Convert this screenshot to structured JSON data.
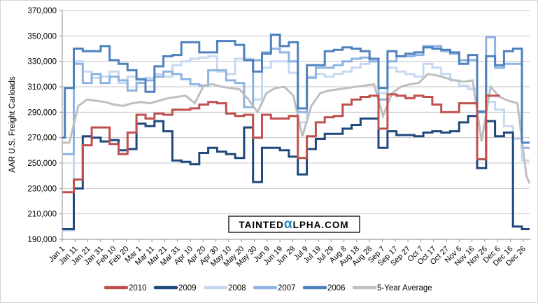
{
  "watermark": {
    "prefix": "TAINTED",
    "alpha": "α",
    "suffix": "LPHA.COM",
    "alpha_color": "#1e8bc3",
    "border_color": "#1a1a1a"
  },
  "chart_data": {
    "type": "line",
    "title": "",
    "xlabel": "",
    "ylabel": "AAR U.S. Freight Carloads",
    "grid": true,
    "legend_position": "bottom",
    "y_axis": {
      "min": 190000,
      "max": 370000,
      "step": 20000,
      "tick_labels": [
        "190,000",
        "210,000",
        "230,000",
        "250,000",
        "270,000",
        "290,000",
        "310,000",
        "330,000",
        "350,000",
        "370,000"
      ]
    },
    "x_axis": {
      "first_day": 1,
      "day_step": 10,
      "days_in_year": 366,
      "tick_labels": [
        "Jan 1",
        "Jan 11",
        "Jan 21",
        "Jan 31",
        "Feb 10",
        "Feb 20",
        "Mar 1",
        "Mar 11",
        "Mar 21",
        "Mar 31",
        "Apr 10",
        "Apr 20",
        "Apr 30",
        "May 10",
        "May 20",
        "May 30",
        "Jun 9",
        "Jun 19",
        "Jun 29",
        "Jul 9",
        "Jul 19",
        "Jul 29",
        "Aug 8",
        "Aug 18",
        "Aug 28",
        "Sep 7",
        "Sep 17",
        "Sep 27",
        "Oct 7",
        "Oct 17",
        "Oct 27",
        "Nov 6",
        "Nov 16",
        "Nov 26",
        "Dec 6",
        "Dec 16",
        "Dec 26"
      ]
    },
    "series": [
      {
        "name": "2010",
        "color": "#c0504d",
        "style": "step",
        "end_day": 343,
        "values": [
          227000,
          227000,
          237000,
          264000,
          278000,
          278000,
          265000,
          257000,
          274000,
          288000,
          285000,
          289000,
          288000,
          292000,
          292000,
          293000,
          296000,
          298000,
          297000,
          289000,
          287000,
          288000,
          270000,
          288000,
          285000,
          285000,
          287000,
          254000,
          271000,
          282000,
          286000,
          287000,
          296000,
          300000,
          302000,
          303000,
          277000,
          304000,
          303000,
          301000,
          303000,
          302000,
          296000,
          290000,
          290000,
          297000,
          297000,
          253000,
          303000,
          303000
        ]
      },
      {
        "name": "2009",
        "color": "#1f497d",
        "style": "step",
        "end_day": 366,
        "values": [
          198000,
          198000,
          230000,
          271000,
          270000,
          267000,
          268000,
          260000,
          261000,
          281000,
          279000,
          283000,
          275000,
          252000,
          251000,
          249000,
          258000,
          262000,
          259000,
          257000,
          254000,
          278000,
          235000,
          262000,
          262000,
          260000,
          255000,
          241000,
          261000,
          269000,
          273000,
          273000,
          277000,
          280000,
          285000,
          285000,
          262000,
          275000,
          272000,
          272000,
          271000,
          274000,
          275000,
          274000,
          275000,
          282000,
          287000,
          246000,
          283000,
          271000,
          274000,
          200000,
          198000
        ]
      },
      {
        "name": "2008",
        "color": "#c6d9f1",
        "style": "step",
        "end_day": 366,
        "values": [
          197000,
          197000,
          330000,
          322000,
          317000,
          318000,
          322000,
          313000,
          318000,
          315000,
          317000,
          320000,
          318000,
          327000,
          330000,
          332000,
          333000,
          334000,
          322000,
          320000,
          332000,
          332000,
          300000,
          325000,
          330000,
          330000,
          321000,
          282000,
          318000,
          320000,
          318000,
          320000,
          322000,
          325000,
          328000,
          330000,
          305000,
          325000,
          322000,
          320000,
          318000,
          328000,
          325000,
          320000,
          315000,
          311000,
          308000,
          253000,
          298000,
          292000,
          279000,
          269000,
          252000
        ]
      },
      {
        "name": "2007",
        "color": "#8db4e2",
        "style": "step",
        "end_day": 366,
        "values": [
          257000,
          257000,
          328000,
          313000,
          320000,
          313000,
          318000,
          315000,
          307000,
          313000,
          315000,
          318000,
          322000,
          320000,
          316000,
          312000,
          311000,
          323000,
          323000,
          315000,
          313000,
          294000,
          331000,
          337000,
          340000,
          337000,
          330000,
          290000,
          317000,
          325000,
          325000,
          327000,
          330000,
          332000,
          333000,
          330000,
          300000,
          330000,
          334000,
          334000,
          335000,
          342000,
          342000,
          338000,
          336000,
          331000,
          331000,
          291000,
          349000,
          325000,
          328000,
          328000,
          262000
        ]
      },
      {
        "name": "2006",
        "color": "#4f81bd",
        "style": "step",
        "end_day": 366,
        "values": [
          270000,
          309000,
          340000,
          338000,
          338000,
          342000,
          331000,
          328000,
          323000,
          316000,
          306000,
          326000,
          334000,
          335000,
          345000,
          345000,
          337000,
          337000,
          346000,
          346000,
          343000,
          331000,
          322000,
          336000,
          351000,
          342000,
          345000,
          293000,
          327000,
          327000,
          338000,
          339000,
          341000,
          340000,
          338000,
          332000,
          309000,
          338000,
          334000,
          336000,
          337000,
          341000,
          340000,
          339000,
          337000,
          328000,
          335000,
          290000,
          334000,
          327000,
          338000,
          340000,
          266000
        ]
      },
      {
        "name": "5-Year Average",
        "color": "#bfbfbf",
        "style": "linear",
        "end_day": 366,
        "values": [
          266000,
          266000,
          295000,
          300000,
          299000,
          298000,
          296000,
          295000,
          297000,
          298000,
          297000,
          299000,
          301000,
          302000,
          303000,
          297000,
          311000,
          312000,
          310000,
          309000,
          308000,
          300000,
          290000,
          305000,
          309000,
          310000,
          303000,
          271000,
          295000,
          305000,
          307000,
          308000,
          309000,
          310000,
          311000,
          312000,
          287000,
          305000,
          310000,
          312000,
          313000,
          320000,
          319000,
          317000,
          315000,
          314000,
          315000,
          267000,
          310000,
          302000,
          299000,
          297000,
          240000
        ]
      }
    ],
    "legend": [
      "2010",
      "2009",
      "2008",
      "2007",
      "2006",
      "5-Year Average"
    ]
  }
}
